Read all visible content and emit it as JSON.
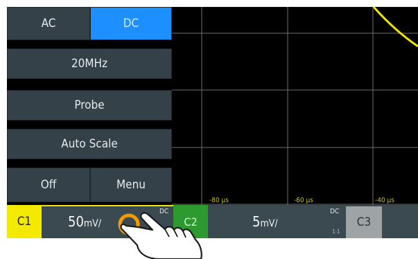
{
  "menu": {
    "ac_label": "AC",
    "dc_label": "DC",
    "bandwidth_label": "20MHz",
    "probe_label": "Probe",
    "autoscale_label": "Auto Scale",
    "off_label": "Off",
    "menu_label": "Menu"
  },
  "time_axis": {
    "ticks": [
      "-80 µs",
      "-60 µs",
      "-40 µs"
    ]
  },
  "channels": {
    "c1": {
      "label": "C1",
      "scale_value": "50",
      "scale_unit": "mV/",
      "coupling": "DC"
    },
    "c2": {
      "label": "C2",
      "scale_value": "5",
      "scale_unit": "mV/",
      "coupling": "DC",
      "probe_ratio": "1:1"
    },
    "c3": {
      "label": "C3"
    }
  },
  "colors": {
    "c1": "#f4ea00",
    "c2": "#2c9a2f",
    "active": "#1e8fff",
    "trace": "#f2e500"
  }
}
